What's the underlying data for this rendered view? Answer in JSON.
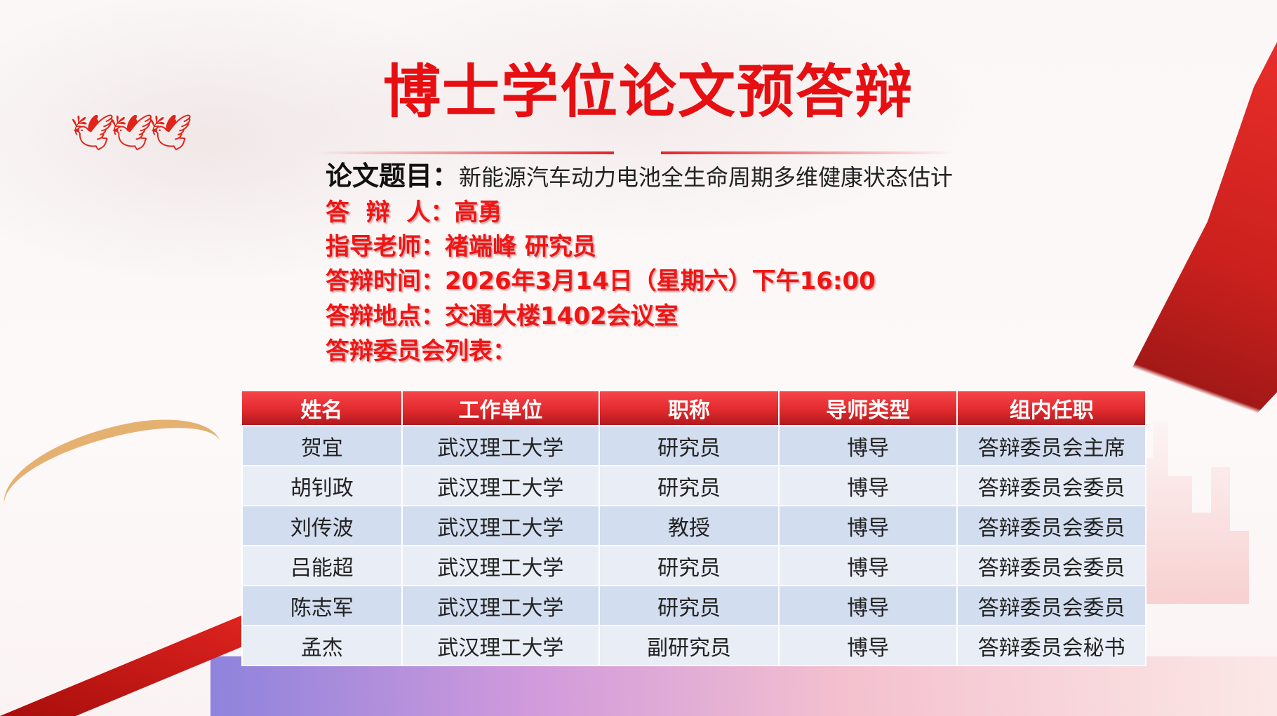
{
  "title": "博士学位论文预答辩",
  "thesis": {
    "label": "论文题目：",
    "value": "新能源汽车动力电池全生命周期多维健康状态估计"
  },
  "info_lines": [
    "答  辩  人：高勇",
    "指导老师：褚端峰 研究员",
    "答辩时间：2026年3月14日（星期六）下午16:00",
    "答辩地点：交通大楼1402会议室",
    "答辩委员会列表："
  ],
  "committee_table": {
    "headers": [
      "姓名",
      "工作单位",
      "职称",
      "导师类型",
      "组内任职"
    ],
    "rows": [
      [
        "贺宜",
        "武汉理工大学",
        "研究员",
        "博导",
        "答辩委员会主席"
      ],
      [
        "胡钊政",
        "武汉理工大学",
        "研究员",
        "博导",
        "答辩委员会委员"
      ],
      [
        "刘传波",
        "武汉理工大学",
        "教授",
        "博导",
        "答辩委员会委员"
      ],
      [
        "吕能超",
        "武汉理工大学",
        "研究员",
        "博导",
        "答辩委员会委员"
      ],
      [
        "陈志军",
        "武汉理工大学",
        "研究员",
        "博导",
        "答辩委员会委员"
      ],
      [
        "孟杰",
        "武汉理工大学",
        "副研究员",
        "博导",
        "答辩委员会秘书"
      ]
    ]
  },
  "colors": {
    "accent_red": "#e60f12",
    "header_red": "#e22a2e",
    "row_blue": "#d2ddef",
    "row_light": "#e8edf6"
  }
}
